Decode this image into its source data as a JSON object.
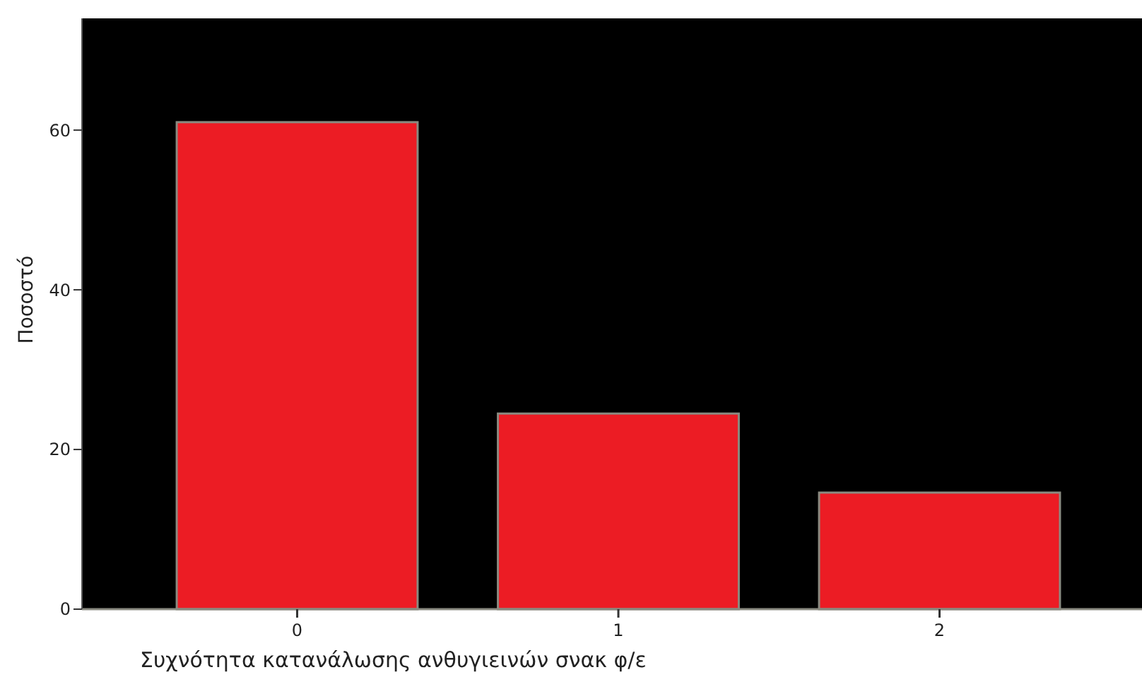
{
  "chart_data": {
    "type": "bar",
    "xlabel": "Συχνότητα κατανάλωσης ανθυγιεινών σνακ φ/ε",
    "ylabel": "Ποσοστό",
    "categories": [
      "0",
      "1",
      "2"
    ],
    "values": [
      61.0,
      24.5,
      14.6
    ],
    "color": "#ec1c24",
    "ylim": [
      0,
      74
    ],
    "yticks": [
      0,
      20,
      40,
      60
    ],
    "grid": false
  }
}
